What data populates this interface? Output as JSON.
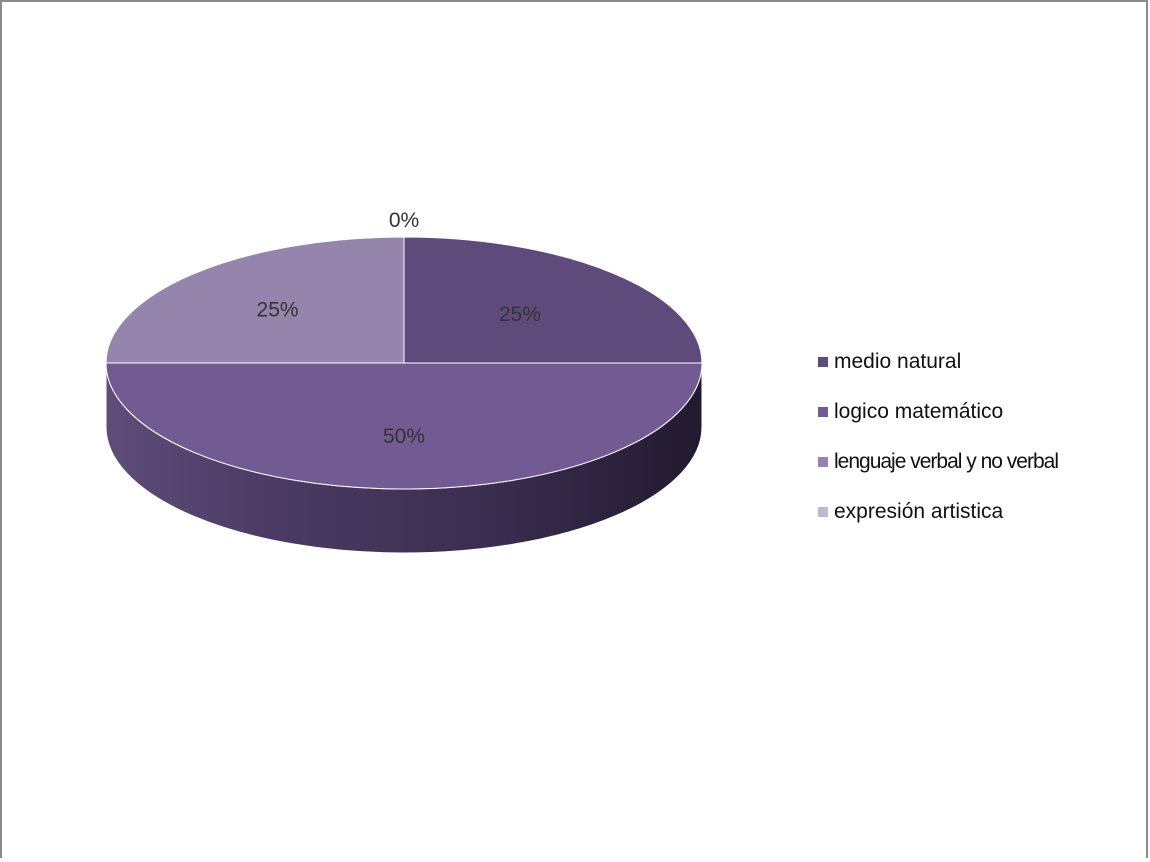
{
  "chart_data": {
    "type": "pie",
    "style": "3d",
    "legend_position": "right",
    "slices": [
      {
        "label": "medio natural",
        "value": 25,
        "display": "25%",
        "color": "#5e4a7b"
      },
      {
        "label": "logico matemático",
        "value": 50,
        "display": "50%",
        "color": "#725a93"
      },
      {
        "label": "lenguaje verbal y no verbal",
        "value": 25,
        "display": "25%",
        "color": "#9585ad"
      },
      {
        "label": "expresión artistica",
        "value": 0,
        "display": "0%",
        "color": "#c3b8d3"
      }
    ]
  }
}
